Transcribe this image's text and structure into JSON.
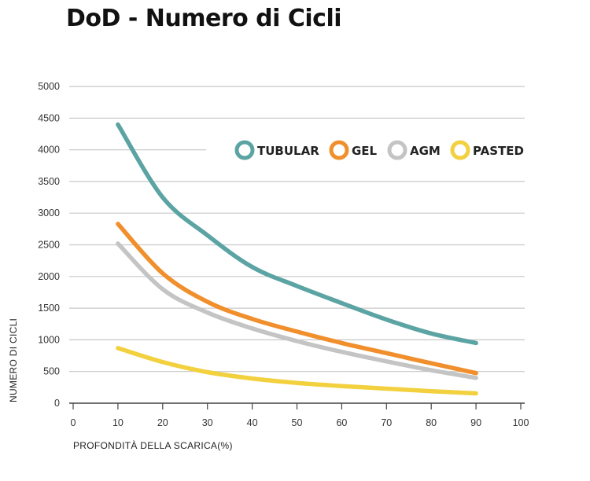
{
  "chart_data": {
    "type": "line",
    "title": "DoD - Numero di Cicli",
    "xlabel": "PROFONDITÀ DELLA SCARICA(%)",
    "ylabel": "NUMERO DI CICLI",
    "xlim": [
      0,
      100
    ],
    "ylim": [
      0,
      5000
    ],
    "xticks": [
      "0",
      "10",
      "20",
      "30",
      "40",
      "50",
      "60",
      "70",
      "80",
      "90",
      "100"
    ],
    "yticks": [
      "0",
      "500",
      "1000",
      "1500",
      "2000",
      "2500",
      "3000",
      "3500",
      "4000",
      "4500",
      "5000"
    ],
    "grid": true,
    "legend_position": "top-right",
    "x": [
      10,
      20,
      30,
      40,
      50,
      60,
      70,
      80,
      90
    ],
    "series": [
      {
        "name": "TUBULAR",
        "color": "#5BA4A3",
        "values": [
          4400,
          3250,
          2650,
          2150,
          1850,
          1580,
          1320,
          1100,
          950
        ]
      },
      {
        "name": "GEL",
        "color": "#F08F2C",
        "values": [
          2830,
          2050,
          1600,
          1330,
          1130,
          950,
          790,
          630,
          475
        ]
      },
      {
        "name": "AGM",
        "color": "#C4C4C4",
        "values": [
          2520,
          1800,
          1430,
          1180,
          980,
          810,
          660,
          520,
          400
        ]
      },
      {
        "name": "PASTED",
        "color": "#F2D03E",
        "values": [
          870,
          650,
          490,
          390,
          320,
          270,
          230,
          190,
          155
        ]
      }
    ]
  }
}
